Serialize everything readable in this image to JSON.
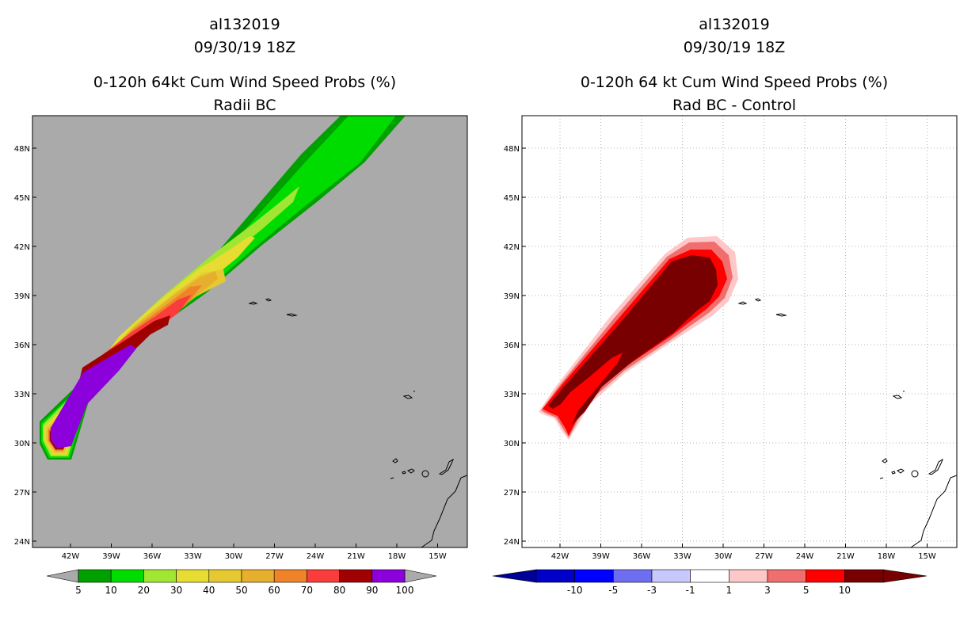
{
  "chart_data": [
    {
      "type": "contour-map",
      "title_lines": [
        "al132019",
        "09/30/19 18Z",
        "0-120h 64kt Cum Wind Speed Probs (%)",
        "Radii BC"
      ],
      "x_ticks": [
        "42W",
        "39W",
        "36W",
        "33W",
        "30W",
        "27W",
        "24W",
        "21W",
        "18W",
        "15W"
      ],
      "y_ticks": [
        "48N",
        "45N",
        "42N",
        "39N",
        "36N",
        "33N",
        "30N",
        "27N",
        "24N"
      ],
      "xlim": [
        "43.8W",
        "13.4W"
      ],
      "ylim": [
        "23.7N",
        "50.0N"
      ],
      "background_color": "#aaaaaa",
      "grid": false,
      "colorbar": {
        "labels": [
          "5",
          "10",
          "20",
          "30",
          "40",
          "50",
          "60",
          "70",
          "80",
          "90",
          "100"
        ],
        "below_color": "#aaaaaa",
        "above_color": "#aaaaaa",
        "colors": [
          "#00a000",
          "#00dc00",
          "#a0e632",
          "#e6dc32",
          "#e6c832",
          "#e6af2d",
          "#f08228",
          "#fa3c3c",
          "#a00000",
          "#8c00dc"
        ]
      }
    },
    {
      "type": "contour-map",
      "title_lines": [
        "al132019",
        "09/30/19 18Z",
        "0-120h 64 kt Cum Wind Speed Probs (%)",
        "Rad BC - Control"
      ],
      "x_ticks": [
        "42W",
        "39W",
        "36W",
        "33W",
        "30W",
        "27W",
        "24W",
        "21W",
        "18W",
        "15W"
      ],
      "y_ticks": [
        "48N",
        "45N",
        "42N",
        "39N",
        "36N",
        "33N",
        "30N",
        "27N",
        "24N"
      ],
      "xlim": [
        "43.8W",
        "13.4W"
      ],
      "ylim": [
        "23.7N",
        "50.0N"
      ],
      "background_color": "#ffffff",
      "grid": true,
      "colorbar": {
        "labels": [
          "-10",
          "-5",
          "-3",
          "-1",
          "1",
          "3",
          "5",
          "10"
        ],
        "below_color": "#000096",
        "above_color": "#780000",
        "colors": [
          "#0000c8",
          "#0000ff",
          "#6e6ef0",
          "#c8c8ff",
          "#ffffff",
          "#ffc8c8",
          "#f06e6e",
          "#ff0000",
          "#780000"
        ]
      }
    }
  ]
}
